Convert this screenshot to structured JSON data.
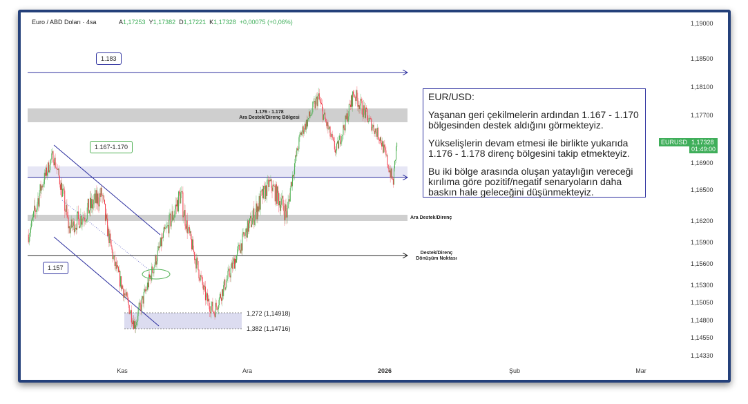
{
  "header": {
    "symbol": "Euro / ABD Doları · 4sa",
    "ohlc": [
      {
        "k": "A",
        "v": "1,17253"
      },
      {
        "k": "Y",
        "v": "1,17382"
      },
      {
        "k": "D",
        "v": "1,17221"
      },
      {
        "k": "K",
        "v": "1,17328"
      }
    ],
    "change": "+0,00075 (+0,06%)"
  },
  "price_tag": {
    "symbol": "EURUSD",
    "price": "1,17328",
    "countdown": "01:49:00"
  },
  "note": {
    "title": "EUR/USD:",
    "p1": "Yaşanan geri çekilmelerin ardından 1.167 - 1.170 bölgesinden destek aldığını görmekteyiz.",
    "p2": "Yükselişlerin devam etmesi ile birlikte yukarıda 1.176 - 1.178 direnç bölgesini takip etmekteyiz.",
    "p3": "Bu iki bölge arasında oluşan yataylığın vereceği kırılıma göre pozitif/negatif senaryoların daha baskın hale geleceğini düşünmekteyiz."
  },
  "annotations": {
    "l1183": "1.183",
    "l1167": "1.167-1.170",
    "l1157": "1.157",
    "zone_top_1": "1.176 - 1.178",
    "zone_top_2": "Ara Destek/Direnç Bölgesi",
    "mid": "Ara Destek/Direnç",
    "pivot_1": "Destek/Direnç",
    "pivot_2": "Dönüşüm Noktası",
    "fib1": "1,272 (1,14918)",
    "fib2": "1,382 (1,14716)"
  },
  "colors": {
    "up": "#4caf50",
    "down": "#f23645",
    "accent": "#2b2e9e",
    "tag": "#3fae5a"
  },
  "chart_data": {
    "type": "candlestick",
    "timeframe": "4h",
    "x_ticks": [
      {
        "label": "Kas",
        "date": "2025-11-01"
      },
      {
        "label": "Ara",
        "date": "2025-12-01"
      },
      {
        "label": "2026",
        "date": "2026-01-01",
        "bold": true
      },
      {
        "label": "Şub",
        "date": "2026-02-01"
      },
      {
        "label": "Mar",
        "date": "2026-03-01"
      }
    ],
    "y_ticks": [
      "1,19000",
      "1,18500",
      "1,18100",
      "1,17700",
      "1,16900",
      "1,16500",
      "1,16200",
      "1,15900",
      "1,15600",
      "1,15300",
      "1,15050",
      "1,14800",
      "1,14550",
      "1,14330"
    ],
    "price_path": [
      [
        "2025-10-09",
        1.1602
      ],
      [
        "2025-10-15",
        1.1704
      ],
      [
        "2025-10-19",
        1.161
      ],
      [
        "2025-10-27",
        1.1647
      ],
      [
        "2025-10-30",
        1.1563
      ],
      [
        "2025-11-04",
        1.1475
      ],
      [
        "2025-11-11",
        1.1602
      ],
      [
        "2025-11-15",
        1.1647
      ],
      [
        "2025-11-21",
        1.1514
      ],
      [
        "2025-11-23",
        1.1493
      ],
      [
        "2025-12-01",
        1.161
      ],
      [
        "2025-12-06",
        1.1661
      ],
      [
        "2025-12-10",
        1.1627
      ],
      [
        "2025-12-13",
        1.1739
      ],
      [
        "2025-12-17",
        1.1797
      ],
      [
        "2025-12-21",
        1.171
      ],
      [
        "2025-12-25",
        1.1803
      ],
      [
        "2025-12-31",
        1.1733
      ],
      [
        "2026-01-03",
        1.1661
      ],
      [
        "2026-01-04",
        1.1733
      ]
    ],
    "levels": [
      1.183,
      1.1685,
      1.1575
    ],
    "zones": [
      [
        1.176,
        1.178
      ],
      [
        1.167,
        1.17
      ],
      [
        1.1625,
        1.1635
      ]
    ]
  }
}
